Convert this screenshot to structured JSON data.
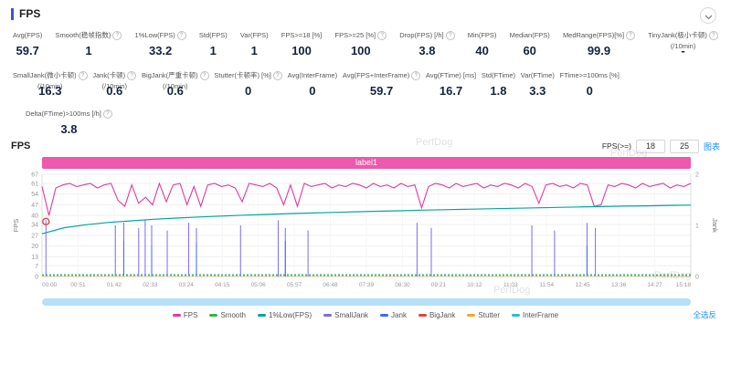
{
  "icons": {
    "info": "?"
  },
  "header": {
    "title": "FPS"
  },
  "stats_rows": [
    {
      "items": [
        {
          "label": "Avg(FPS)",
          "value": "59.7"
        },
        {
          "label": "Smooth(稳帧指数)",
          "value": "1",
          "info": true
        },
        {
          "label": "1%Low(FPS)",
          "value": "33.2",
          "info": true
        },
        {
          "label": "Std(FPS)",
          "value": "1"
        },
        {
          "label": "Var(FPS)",
          "value": "1"
        },
        {
          "label": "FPS>=18 [%]",
          "value": "100"
        },
        {
          "label": "FPS>=25 [%]",
          "value": "100",
          "info": true
        },
        {
          "label": "Drop(FPS) [/h]",
          "value": "3.8",
          "info": true
        },
        {
          "label": "Min(FPS)",
          "value": "40"
        },
        {
          "label": "Median(FPS)",
          "value": "60"
        },
        {
          "label": "MedRange(FPS)[%]",
          "value": "99.9",
          "info": true
        },
        {
          "label": "TinyJank(极小卡顿)",
          "sub": "(/10min)",
          "value": "-",
          "info": true
        }
      ]
    },
    {
      "items": [
        {
          "label": "SmallJank(微小卡顿)",
          "sub": "(/10min)",
          "value": "16.3",
          "info": true
        },
        {
          "label": "Jank(卡顿)",
          "sub": "(/10min)",
          "value": "0.6",
          "info": true
        },
        {
          "label": "BigJank(严重卡顿)",
          "sub": "(/10min)",
          "value": "0.6",
          "info": true
        },
        {
          "label": "Stutter(卡顿率) [%]",
          "value": "0",
          "info": true
        },
        {
          "label": "Avg(InterFrame)",
          "value": "0"
        },
        {
          "label": "Avg(FPS+InterFrame)",
          "value": "59.7",
          "info": true
        },
        {
          "label": "Avg(FTime) [ms]",
          "value": "16.7"
        },
        {
          "label": "Std(FTime)",
          "value": "1.8"
        },
        {
          "label": "Var(FTime)",
          "value": "3.3"
        },
        {
          "label": "FTime>=100ms [%]",
          "value": "0"
        }
      ]
    },
    {
      "items": [
        {
          "label": "Delta(FTime)>100ms [/h]",
          "value": "3.8",
          "info": true
        }
      ]
    }
  ],
  "chart": {
    "section_title": "FPS",
    "threshold_label": "FPS(>=)",
    "threshold_low": "18",
    "threshold_high": "25",
    "chart_link": "图表",
    "select_all_link": "全选反",
    "watermark": "PerfDog"
  },
  "chart_data": {
    "type": "line",
    "title": "label1",
    "y_left": {
      "label": "FPS",
      "max": 67,
      "ticks": [
        67,
        61,
        54,
        47,
        40,
        34,
        27,
        20,
        13,
        7,
        0
      ]
    },
    "y_right": {
      "label": "Jank",
      "max": 2,
      "ticks": [
        2,
        1,
        0
      ]
    },
    "x_ticks": [
      "00:00",
      "00:51",
      "01:42",
      "02:33",
      "03:24",
      "04:15",
      "05:06",
      "05:57",
      "06:48",
      "07:39",
      "08:30",
      "09:21",
      "10:12",
      "11:03",
      "11:54",
      "12:45",
      "13:36",
      "14:27",
      "15:18"
    ],
    "series": [
      {
        "name": "FPS",
        "color": "#e6399b",
        "values": [
          59,
          40,
          58,
          60,
          61,
          59,
          60,
          61,
          58,
          60,
          61,
          50,
          46,
          60,
          48,
          52,
          47,
          61,
          49,
          60,
          61,
          47,
          59,
          46,
          60,
          61,
          59,
          60,
          58,
          49,
          61,
          60,
          59,
          61,
          58,
          47,
          60,
          46,
          61,
          59,
          60,
          61,
          58,
          60,
          59,
          61,
          60,
          58,
          61,
          59,
          60,
          58,
          61,
          59,
          60,
          45,
          59,
          61,
          60,
          58,
          61,
          59,
          60,
          61,
          58,
          60,
          59,
          61,
          60,
          58,
          61,
          59,
          48,
          60,
          61,
          59,
          60,
          58,
          61,
          60,
          46,
          47,
          60,
          59,
          61,
          60,
          58,
          61,
          59,
          60,
          61,
          58,
          60,
          59,
          61
        ]
      },
      {
        "name": "Smooth",
        "color": "#35b34a",
        "values_constant": 1.2
      },
      {
        "name": "1%Low(FPS)",
        "color": "#00a79d",
        "curve": [
          28,
          32,
          34,
          35.5,
          36.5,
          37.5,
          38.3,
          39,
          39.6,
          40.2,
          40.7,
          41.2,
          41.6,
          42,
          42.4,
          42.8,
          43.1,
          43.5,
          43.8,
          44.1,
          44.4,
          44.7,
          45,
          45.3,
          45.6,
          45.8,
          46.1,
          46.3,
          46.6,
          46.8
        ]
      },
      {
        "name": "SmallJank",
        "color": "#7b6bef",
        "spikes": [
          {
            "x": 0.006,
            "h": 1.1
          },
          {
            "x": 0.113,
            "h": 1.0
          },
          {
            "x": 0.126,
            "h": 1.05
          },
          {
            "x": 0.149,
            "h": 0.95
          },
          {
            "x": 0.159,
            "h": 1.1
          },
          {
            "x": 0.169,
            "h": 1.0
          },
          {
            "x": 0.193,
            "h": 0.9
          },
          {
            "x": 0.226,
            "h": 1.05
          },
          {
            "x": 0.238,
            "h": 0.95
          },
          {
            "x": 0.306,
            "h": 1.0
          },
          {
            "x": 0.364,
            "h": 1.1
          },
          {
            "x": 0.375,
            "h": 0.95
          },
          {
            "x": 0.41,
            "h": 0.9
          },
          {
            "x": 0.578,
            "h": 1.05
          },
          {
            "x": 0.6,
            "h": 0.95
          },
          {
            "x": 0.755,
            "h": 1.0
          },
          {
            "x": 0.79,
            "h": 0.9
          },
          {
            "x": 0.84,
            "h": 1.05
          },
          {
            "x": 0.853,
            "h": 0.95
          }
        ]
      },
      {
        "name": "Jank",
        "color": "#3d6de8",
        "spikes": [
          {
            "x": 0.126,
            "h": 0.7
          },
          {
            "x": 0.169,
            "h": 0.6
          },
          {
            "x": 0.238,
            "h": 0.65
          },
          {
            "x": 0.375,
            "h": 0.7
          },
          {
            "x": 0.84,
            "h": 0.6
          }
        ]
      },
      {
        "name": "BigJank",
        "color": "#e64040",
        "marker": {
          "x": 0.006,
          "y": 36
        }
      },
      {
        "name": "Stutter",
        "color": "#f5a623",
        "values_constant": 0.4
      },
      {
        "name": "InterFrame",
        "color": "#2bbcd4",
        "values_constant": 0.8
      }
    ]
  }
}
